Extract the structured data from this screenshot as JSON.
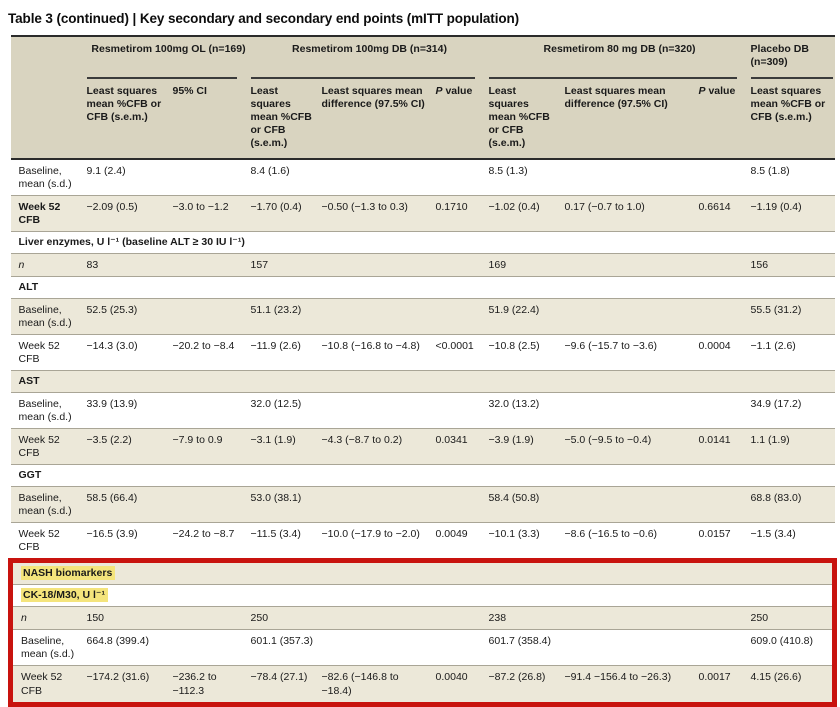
{
  "title": "Table 3 (continued) | Key secondary and secondary end points (mITT population)",
  "colors": {
    "header_band": "#d9d4c0",
    "shaded_row": "#ece8d9",
    "plain_row": "#ffffff",
    "thin_rule": "#a9a596",
    "dark_rule": "#2b2b2b",
    "yellow_highlight": "#f4e47c",
    "red_annotation_box": "#c8130e"
  },
  "annotation": {
    "type": "red-box",
    "around": "NASH biomarkers section (last five rows)"
  },
  "table": {
    "columns": {
      "widths": [
        76,
        86,
        78,
        71,
        114,
        53,
        76,
        134,
        52,
        84
      ],
      "groups": [
        {
          "label": "Resmetirom 100mg OL (n=169)",
          "colspan": 2,
          "align": "center"
        },
        {
          "label": "Resmetirom 100mg DB (n=314)",
          "colspan": 3,
          "align": "center"
        },
        {
          "label": "Resmetirom 80 mg DB (n=320)",
          "colspan": 3,
          "align": "center"
        },
        {
          "label": "Placebo DB (n=309)",
          "colspan": 1,
          "align": "left"
        }
      ],
      "subheaders": [
        {
          "text": "Least squares mean %CFB or CFB (s.e.m.)"
        },
        {
          "text": "95% CI"
        },
        {
          "text": "Least squares mean %CFB or CFB (s.e.m.)"
        },
        {
          "text": "Least squares mean difference (97.5% CI)"
        },
        {
          "text": "P value",
          "italic_first": true
        },
        {
          "text": "Least squares mean %CFB or CFB (s.e.m.)"
        },
        {
          "text": "Least squares mean difference (97.5% CI)"
        },
        {
          "text": "P value",
          "italic_first": true
        },
        {
          "text": "Least squares mean %CFB or CFB (s.e.m.)"
        }
      ]
    },
    "body_rows": [
      {
        "kind": "data",
        "label": "Baseline, mean (s.d.)",
        "shaded": false,
        "cells": [
          "9.1 (2.4)",
          "",
          "8.4 (1.6)",
          "",
          "",
          "8.5 (1.3)",
          "",
          "",
          "8.5 (1.8)"
        ]
      },
      {
        "kind": "data",
        "label": "Week 52 CFB",
        "label_bold": true,
        "shaded": true,
        "cells": [
          "−2.09 (0.5)",
          "−3.0 to −1.2",
          "−1.70 (0.4)",
          "−0.50 (−1.3 to 0.3)",
          "0.1710",
          "−1.02 (0.4)",
          "0.17 (−0.7 to 1.0)",
          "0.6614",
          "−1.19 (0.4)"
        ]
      },
      {
        "kind": "section",
        "label": "Liver enzymes, U l⁻¹ (baseline ALT ≥ 30 IU l⁻¹)",
        "shaded": false
      },
      {
        "kind": "data",
        "label": "n",
        "label_italic": true,
        "shaded": true,
        "cells": [
          "83",
          "",
          "157",
          "",
          "",
          "169",
          "",
          "",
          "156"
        ]
      },
      {
        "kind": "section",
        "label": "ALT",
        "shaded": false
      },
      {
        "kind": "data",
        "label": "Baseline, mean (s.d.)",
        "shaded": true,
        "cells": [
          "52.5 (25.3)",
          "",
          "51.1 (23.2)",
          "",
          "",
          "51.9 (22.4)",
          "",
          "",
          "55.5 (31.2)"
        ]
      },
      {
        "kind": "data",
        "label": "Week 52 CFB",
        "shaded": false,
        "cells": [
          "−14.3 (3.0)",
          "−20.2 to −8.4",
          "−11.9 (2.6)",
          "−10.8 (−16.8 to −4.8)",
          "<0.0001",
          "−10.8 (2.5)",
          "−9.6 (−15.7 to −3.6)",
          "0.0004",
          "−1.1 (2.6)"
        ]
      },
      {
        "kind": "section",
        "label": "AST",
        "shaded": true
      },
      {
        "kind": "data",
        "label": "Baseline, mean (s.d.)",
        "shaded": false,
        "cells": [
          "33.9 (13.9)",
          "",
          "32.0 (12.5)",
          "",
          "",
          "32.0 (13.2)",
          "",
          "",
          "34.9 (17.2)"
        ]
      },
      {
        "kind": "data",
        "label": "Week 52 CFB",
        "shaded": true,
        "cells": [
          "−3.5 (2.2)",
          "−7.9 to 0.9",
          "−3.1 (1.9)",
          "−4.3 (−8.7 to 0.2)",
          "0.0341",
          "−3.9 (1.9)",
          "−5.0 (−9.5 to −0.4)",
          "0.0141",
          "1.1 (1.9)"
        ]
      },
      {
        "kind": "section",
        "label": "GGT",
        "shaded": false
      },
      {
        "kind": "data",
        "label": "Baseline, mean (s.d.)",
        "shaded": true,
        "cells": [
          "58.5 (66.4)",
          "",
          "53.0 (38.1)",
          "",
          "",
          "58.4 (50.8)",
          "",
          "",
          "68.8 (83.0)"
        ]
      },
      {
        "kind": "data",
        "label": "Week 52 CFB",
        "shaded": false,
        "cells": [
          "−16.5 (3.9)",
          "−24.2 to −8.7",
          "−11.5 (3.4)",
          "−10.0 (−17.9 to −2.0)",
          "0.0049",
          "−10.1 (3.3)",
          "−8.6 (−16.5 to −0.6)",
          "0.0157",
          "−1.5 (3.4)"
        ]
      }
    ],
    "nash_rows": [
      {
        "kind": "section",
        "label": "NASH biomarkers",
        "highlight": true,
        "shaded": true
      },
      {
        "kind": "section",
        "label": "CK-18/M30, U l⁻¹",
        "highlight": true,
        "shaded": false
      },
      {
        "kind": "data",
        "label": "n",
        "label_italic": true,
        "shaded": true,
        "cells": [
          "150",
          "",
          "250",
          "",
          "",
          "238",
          "",
          "",
          "250"
        ]
      },
      {
        "kind": "data",
        "label": "Baseline, mean (s.d.)",
        "shaded": false,
        "cells": [
          "664.8 (399.4)",
          "",
          "601.1 (357.3)",
          "",
          "",
          "601.7 (358.4)",
          "",
          "",
          "609.0 (410.8)"
        ]
      },
      {
        "kind": "data",
        "label": "Week 52 CFB",
        "shaded": true,
        "cells": [
          "−174.2 (31.6)",
          "−236.2 to −112.3",
          "−78.4 (27.1)",
          "−82.6 (−146.8 to −18.4)",
          "0.0040",
          "−87.2 (26.8)",
          "−91.4 −156.4 to −26.3)",
          "0.0017",
          "4.15 (26.6)"
        ]
      }
    ]
  }
}
